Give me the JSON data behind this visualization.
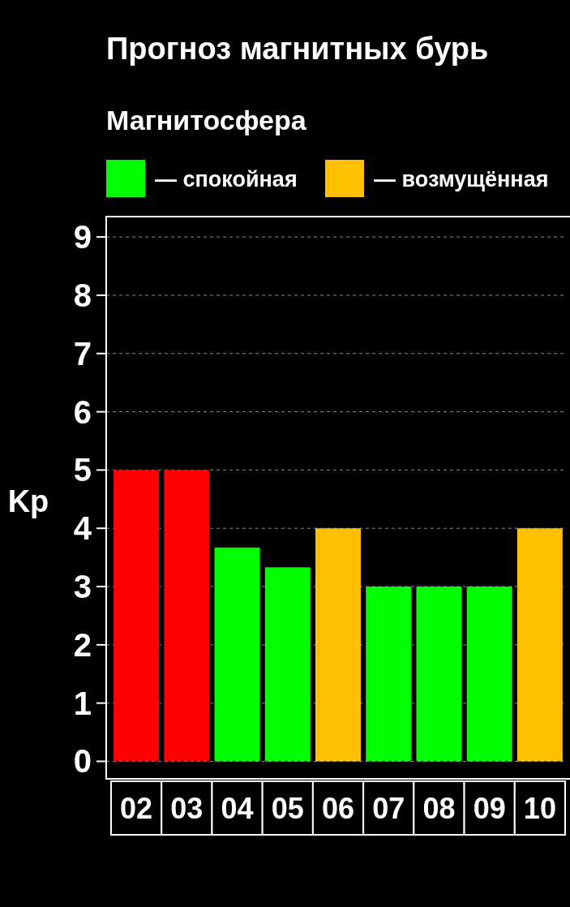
{
  "chart_data": {
    "type": "bar",
    "title": "Прогноз магнитных бурь",
    "subtitle": "Магнитосфера",
    "ylabel": "Kp",
    "categories": [
      "02",
      "03",
      "04",
      "05",
      "06",
      "07",
      "08",
      "09",
      "10"
    ],
    "series": [
      {
        "color": "#ff0000",
        "values": [
          5,
          5,
          null,
          null,
          null,
          null,
          null,
          null,
          null
        ]
      },
      {
        "name": "— спокойная",
        "color": "#00ff00",
        "values": [
          null,
          null,
          3.67,
          3.33,
          null,
          3,
          3,
          3,
          null
        ]
      },
      {
        "name": "— возмущённая",
        "color": "#ffc000",
        "values": [
          null,
          null,
          null,
          null,
          4,
          null,
          null,
          null,
          4
        ]
      }
    ],
    "ylim": [
      -0.3,
      9.35
    ],
    "yticks": [
      0,
      1,
      2,
      3,
      4,
      5,
      6,
      7,
      8,
      9
    ],
    "grid": "y",
    "legend": "top left"
  }
}
